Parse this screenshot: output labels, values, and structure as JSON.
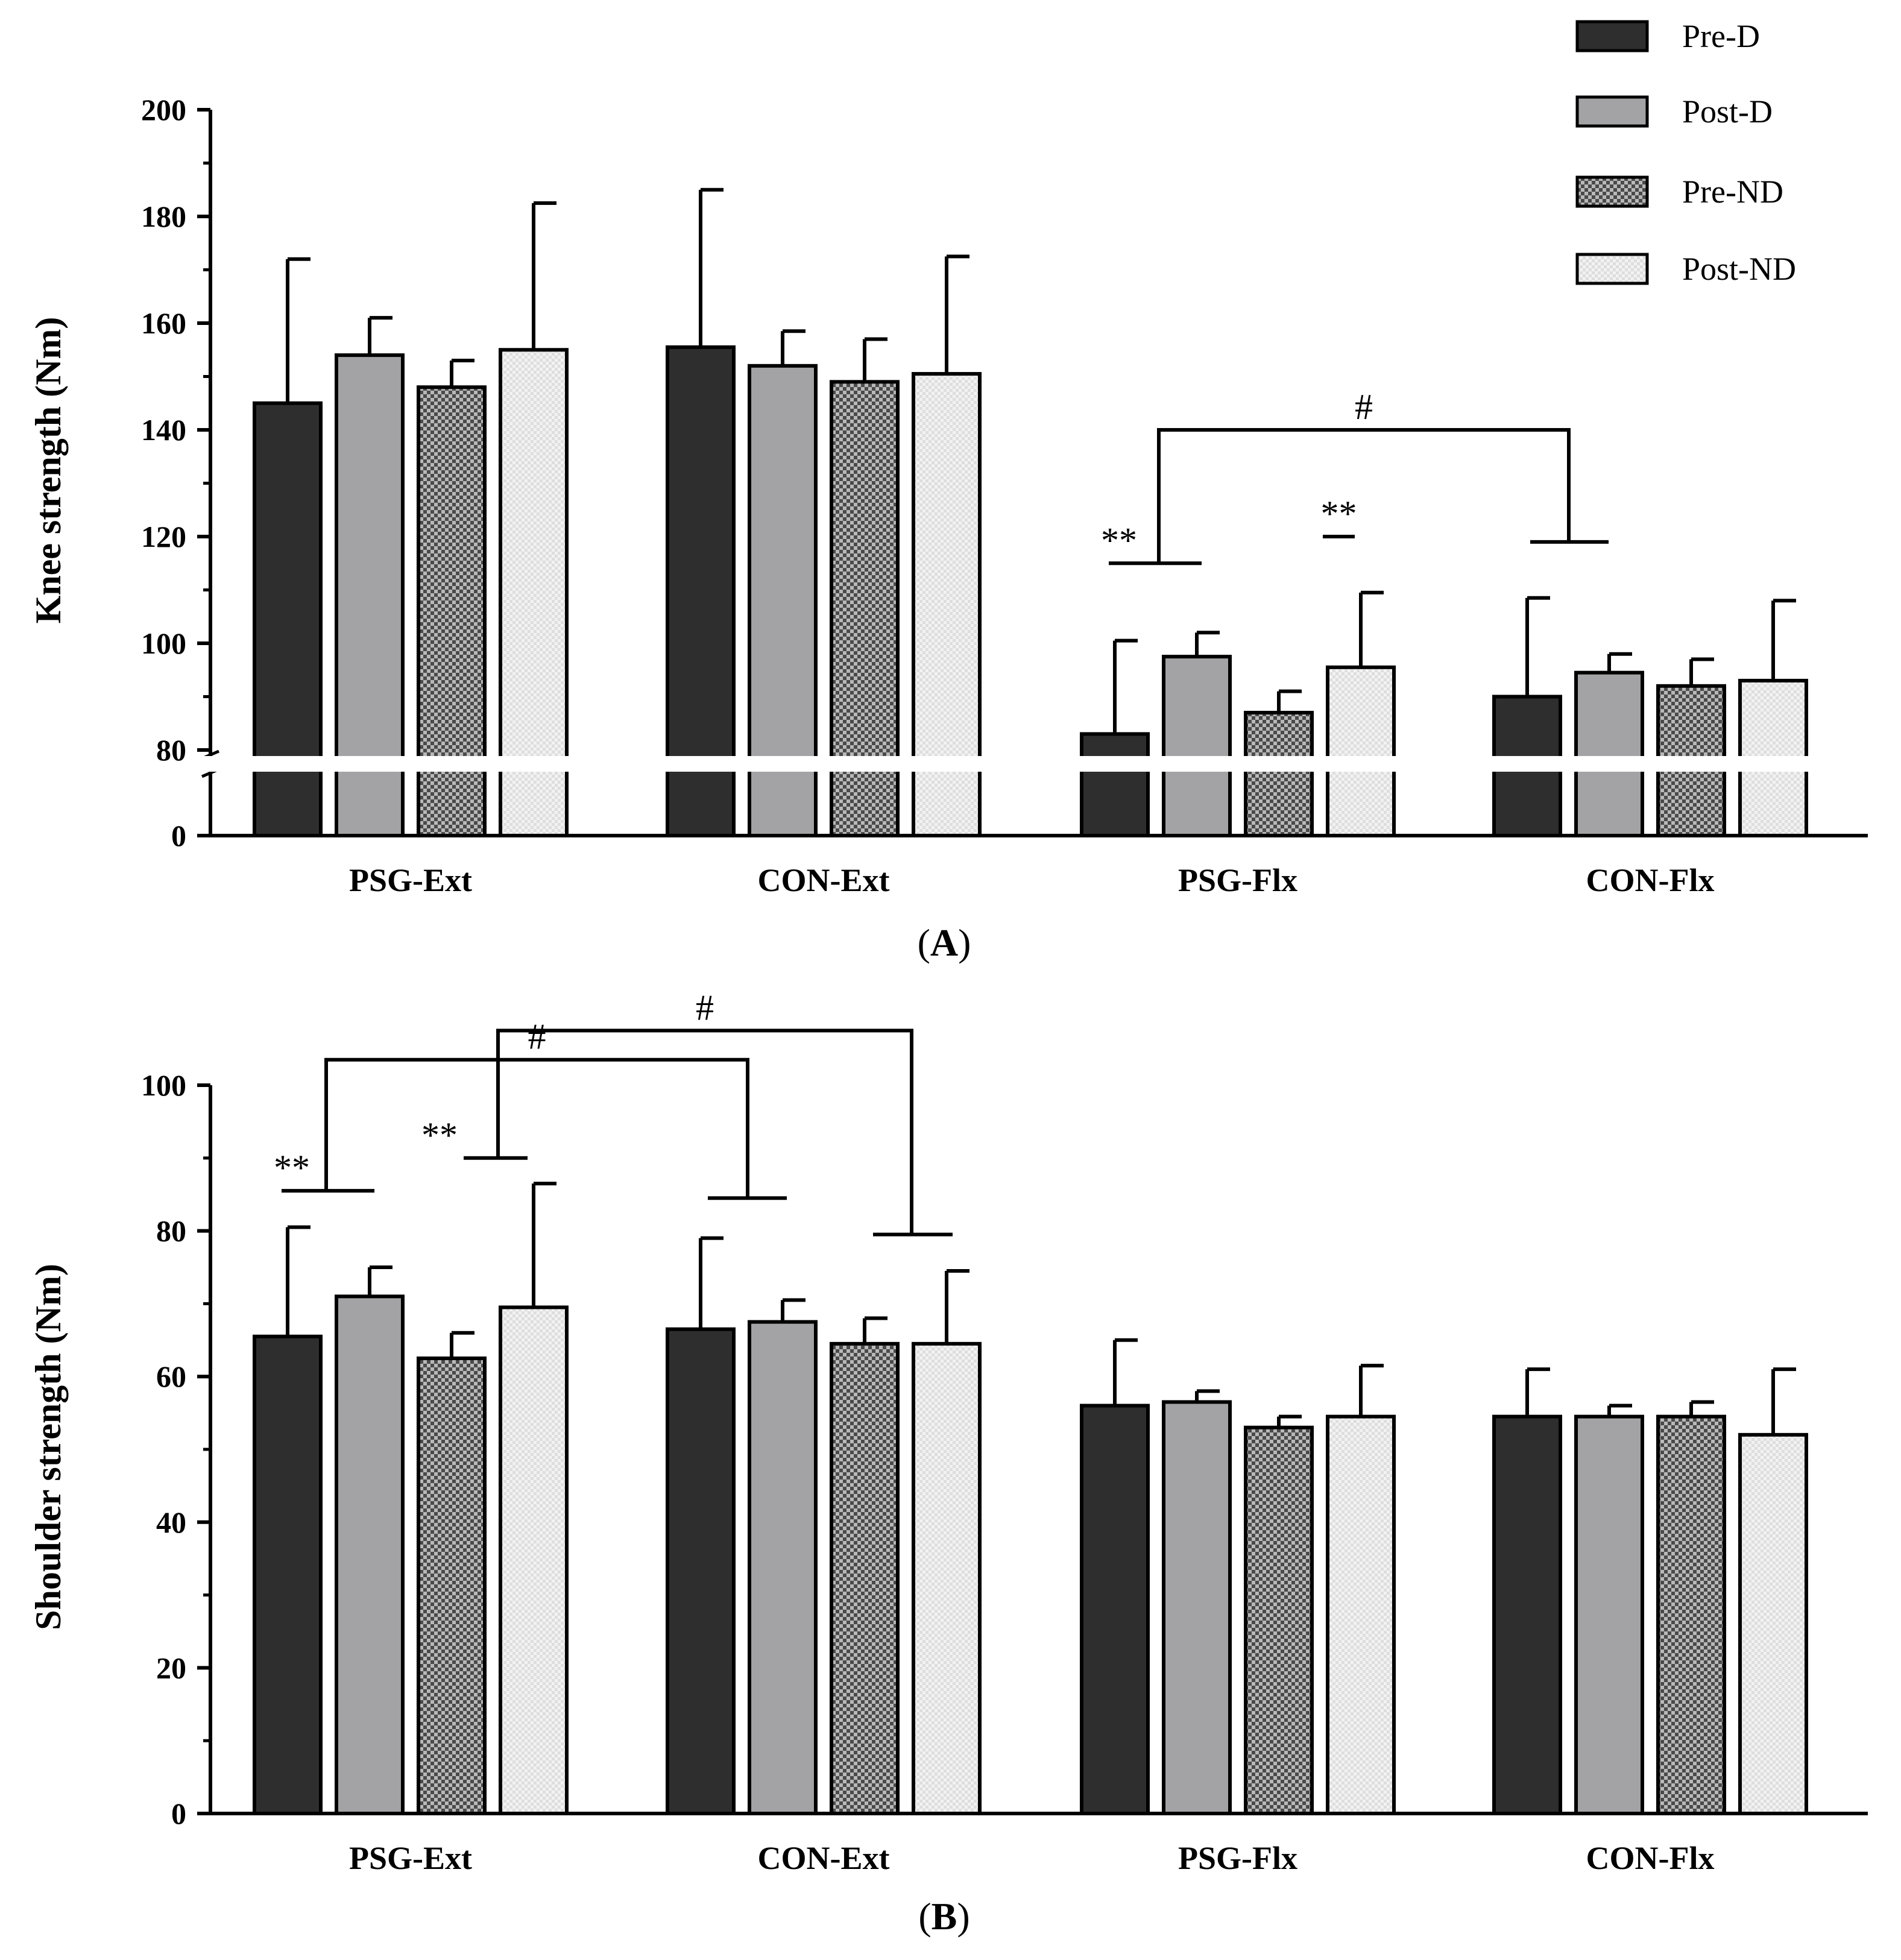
{
  "colors": {
    "pre_d": "#2e2e2e",
    "post_d": "#a3a3a5",
    "pre_nd": "#8a8a8a",
    "post_nd": "#ececec",
    "axis": "#000000"
  },
  "legend": [
    {
      "key": "pre_d",
      "label": "Pre-D"
    },
    {
      "key": "post_d",
      "label": "Post-D"
    },
    {
      "key": "pre_nd",
      "label": "Pre-ND"
    },
    {
      "key": "post_nd",
      "label": "Post-ND"
    }
  ],
  "chart_data": [
    {
      "type": "bar",
      "panel_label": "A",
      "ylabel": "Knee strength (Nm)",
      "categories": [
        "PSG-Ext",
        "CON-Ext",
        "PSG-Flx",
        "CON-Flx"
      ],
      "ylim": [
        0,
        200
      ],
      "axis_break": [
        0,
        80
      ],
      "ticks": [
        0,
        80,
        100,
        120,
        140,
        160,
        180,
        200
      ],
      "series": [
        {
          "name": "Pre-D",
          "values": [
            145,
            155.5,
            83,
            90
          ],
          "errors": [
            27,
            29.5,
            17.5,
            18.5
          ]
        },
        {
          "name": "Post-D",
          "values": [
            154,
            152,
            97.5,
            94.5
          ],
          "errors": [
            7,
            6.5,
            4.5,
            3.5
          ]
        },
        {
          "name": "Pre-ND",
          "values": [
            148,
            149,
            87,
            92
          ],
          "errors": [
            5,
            8,
            4,
            5
          ]
        },
        {
          "name": "Post-ND",
          "values": [
            155,
            150.5,
            95.5,
            93
          ],
          "errors": [
            27.5,
            22,
            14,
            15
          ]
        }
      ],
      "annotations": [
        {
          "text": "**",
          "group": 2,
          "from_series": 0,
          "to_series": 1,
          "y": 115
        },
        {
          "text": "**",
          "group": 2,
          "from_series": 2,
          "to_series": 3,
          "y": 120
        },
        {
          "text": "#",
          "from_group": 2,
          "to_group": 3,
          "y": 140,
          "left_y": 115,
          "right_y": 119
        }
      ]
    },
    {
      "type": "bar",
      "panel_label": "B",
      "ylabel": "Shoulder strength (Nm)",
      "categories": [
        "PSG-Ext",
        "CON-Ext",
        "PSG-Flx",
        "CON-Flx"
      ],
      "ylim": [
        0,
        100
      ],
      "ticks": [
        0,
        20,
        40,
        60,
        80,
        100
      ],
      "series": [
        {
          "name": "Pre-D",
          "values": [
            65.5,
            66.5,
            56,
            54.5
          ],
          "errors": [
            15,
            12.5,
            9,
            6.5
          ]
        },
        {
          "name": "Post-D",
          "values": [
            71,
            67.5,
            56.5,
            54.5
          ],
          "errors": [
            4,
            3,
            1.5,
            1.5
          ]
        },
        {
          "name": "Pre-ND",
          "values": [
            62.5,
            64.5,
            53,
            54.5
          ],
          "errors": [
            3.5,
            3.5,
            1.5,
            2
          ]
        },
        {
          "name": "Post-ND",
          "values": [
            69.5,
            64.5,
            54.5,
            52
          ],
          "errors": [
            17,
            10,
            7,
            9
          ]
        }
      ],
      "annotations": [
        {
          "text": "**",
          "group": 0,
          "from_series": 0,
          "to_series": 1,
          "y": 85.5
        },
        {
          "text": "**",
          "group": 0,
          "from_series": 2,
          "to_series": 3,
          "y": 90
        },
        {
          "text": "#",
          "from_group": 0,
          "to_group": 1,
          "y": 103.5,
          "left_y": 85.5,
          "right_y": 84.5
        },
        {
          "text": "#",
          "from_group": 0,
          "to_group": 1,
          "y": 107.5,
          "left_y": 90,
          "right_y": 79.5,
          "left_series": 2,
          "right_series": 3
        }
      ]
    }
  ]
}
